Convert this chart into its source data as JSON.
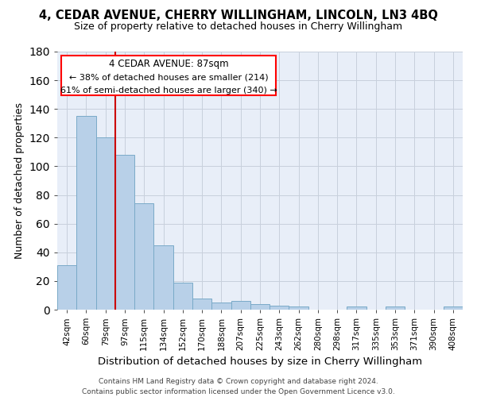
{
  "title": "4, CEDAR AVENUE, CHERRY WILLINGHAM, LINCOLN, LN3 4BQ",
  "subtitle": "Size of property relative to detached houses in Cherry Willingham",
  "xlabel": "Distribution of detached houses by size in Cherry Willingham",
  "ylabel": "Number of detached properties",
  "footer_line1": "Contains HM Land Registry data © Crown copyright and database right 2024.",
  "footer_line2": "Contains public sector information licensed under the Open Government Licence v3.0.",
  "categories": [
    "42sqm",
    "60sqm",
    "79sqm",
    "97sqm",
    "115sqm",
    "134sqm",
    "152sqm",
    "170sqm",
    "188sqm",
    "207sqm",
    "225sqm",
    "243sqm",
    "262sqm",
    "280sqm",
    "298sqm",
    "317sqm",
    "335sqm",
    "353sqm",
    "371sqm",
    "390sqm",
    "408sqm"
  ],
  "values": [
    31,
    135,
    120,
    108,
    74,
    45,
    19,
    8,
    5,
    6,
    4,
    3,
    2,
    0,
    0,
    2,
    0,
    2,
    0,
    0,
    2
  ],
  "bar_color": "#b8d0e8",
  "bar_edge_color": "#7aaac8",
  "ylim": [
    0,
    180
  ],
  "yticks": [
    0,
    20,
    40,
    60,
    80,
    100,
    120,
    140,
    160,
    180
  ],
  "property_label": "4 CEDAR AVENUE: 87sqm",
  "annotation_line1": "← 38% of detached houses are smaller (214)",
  "annotation_line2": "61% of semi-detached houses are larger (340) →",
  "vline_color": "#cc0000",
  "background_color": "#e8eef8",
  "grid_color": "#c8d0dc"
}
